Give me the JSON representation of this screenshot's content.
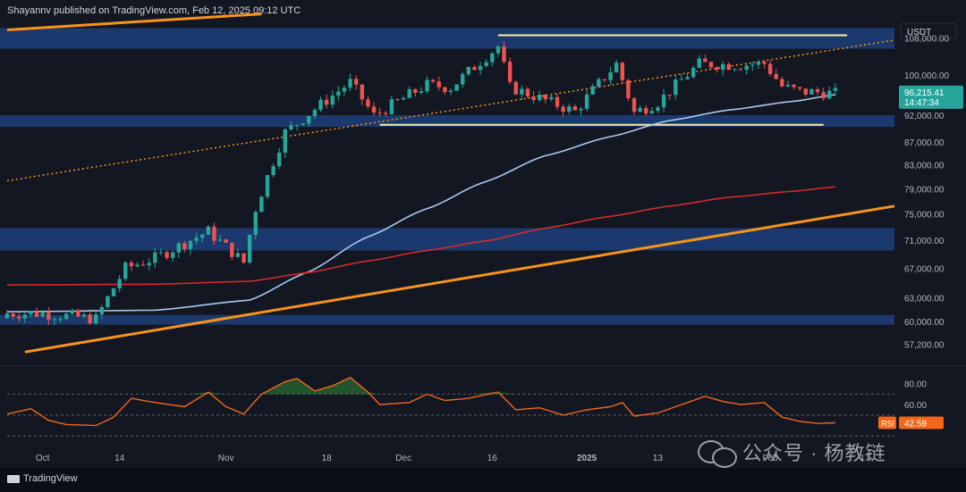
{
  "header": {
    "publisher_text": "Shayannv published on TradingView.com, Feb 12, 2025 09:12 UTC"
  },
  "footer": {
    "logo_text": "TradingView"
  },
  "watermark": {
    "text": "公众号 · 杨教链"
  },
  "colors": {
    "background": "#131722",
    "bull": "#26a69a",
    "bear": "#ef5350",
    "zone": "#1e3f7a",
    "channel": "#f7931a",
    "ma_fast": "#a9c8f0",
    "ma_slow": "#d12b2b",
    "range_box": "#f0f0a0",
    "rsi": "#f3661b"
  },
  "chart_data": [
    {
      "type": "candlestick",
      "title": "",
      "quote_currency": "USDT",
      "y_axis": {
        "scale": "log",
        "range": [
          55500,
          113000
        ],
        "ticks": [
          "108,000.00",
          "100,000.00",
          "92,000.00",
          "87,000.00",
          "83,000.00",
          "79,000.00",
          "75,000.00",
          "71,000.00",
          "67,000.00",
          "63,000.00",
          "60,000.00",
          "57,200.00"
        ]
      },
      "x_axis": {
        "range": [
          "2024-09-25",
          "2025-02-22"
        ],
        "ticks": [
          {
            "date": "2024-10-01",
            "label": "Oct",
            "bold": false
          },
          {
            "date": "2024-10-14",
            "label": "14",
            "bold": false
          },
          {
            "date": "2024-11-01",
            "label": "Nov",
            "bold": false
          },
          {
            "date": "2024-11-18",
            "label": "18",
            "bold": false
          },
          {
            "date": "2024-12-01",
            "label": "Dec",
            "bold": false
          },
          {
            "date": "2024-12-16",
            "label": "16",
            "bold": false
          },
          {
            "date": "2025-01-01",
            "label": "2025",
            "bold": true
          },
          {
            "date": "2025-01-13",
            "label": "13",
            "bold": false
          },
          {
            "date": "2025-02-01",
            "label": "Feb",
            "bold": false
          },
          {
            "date": "2025-02-17",
            "label": "17",
            "bold": false
          }
        ]
      },
      "last_price": {
        "value": 96215.41,
        "label": "96,215.41",
        "countdown": "14:47:34"
      },
      "candles_daily_close": [
        {
          "date": "2024-10-01",
          "close": 61000
        },
        {
          "date": "2024-10-10",
          "close": 60300
        },
        {
          "date": "2024-10-15",
          "close": 67000
        },
        {
          "date": "2024-10-20",
          "close": 68400
        },
        {
          "date": "2024-10-29",
          "close": 72300
        },
        {
          "date": "2024-11-04",
          "close": 67800
        },
        {
          "date": "2024-11-06",
          "close": 75800
        },
        {
          "date": "2024-11-11",
          "close": 88800
        },
        {
          "date": "2024-11-13",
          "close": 90500
        },
        {
          "date": "2024-11-22",
          "close": 98500
        },
        {
          "date": "2024-11-26",
          "close": 91900
        },
        {
          "date": "2024-12-05",
          "close": 98000
        },
        {
          "date": "2024-12-09",
          "close": 97400
        },
        {
          "date": "2024-12-17",
          "close": 106100
        },
        {
          "date": "2024-12-19",
          "close": 97500
        },
        {
          "date": "2024-12-30",
          "close": 92700
        },
        {
          "date": "2025-01-06",
          "close": 102300
        },
        {
          "date": "2025-01-09",
          "close": 92500
        },
        {
          "date": "2025-01-13",
          "close": 94500
        },
        {
          "date": "2025-01-20",
          "close": 102300
        },
        {
          "date": "2025-01-27",
          "close": 102100
        },
        {
          "date": "2025-01-31",
          "close": 102400
        },
        {
          "date": "2025-02-03",
          "close": 97700
        },
        {
          "date": "2025-02-06",
          "close": 96600
        },
        {
          "date": "2025-02-09",
          "close": 96500
        },
        {
          "date": "2025-02-12",
          "close": 96215
        }
      ],
      "zones": [
        {
          "from": 105600,
          "to": 110200
        },
        {
          "from": 89800,
          "to": 92000
        },
        {
          "from": 69500,
          "to": 72800
        },
        {
          "from": 59600,
          "to": 60800
        }
      ],
      "range_box": {
        "top": 108600,
        "bottom": 90200,
        "start": "2024-12-17",
        "end": "2025-02-14"
      },
      "channel_lines": [
        {
          "name": "",
          "points": [
            [
              "2024-09-25",
              109800
            ],
            [
              "2024-11-07",
              113500
            ]
          ],
          "style": "solid"
        },
        {
          "name": "",
          "points": [
            [
              "2024-09-28",
              56300
            ],
            [
              "2025-02-22",
              76200
            ]
          ],
          "style": "solid"
        },
        {
          "name": "",
          "points": [
            [
              "2024-09-25",
              80300
            ],
            [
              "2025-02-22",
              107500
            ]
          ],
          "style": "dotted"
        }
      ],
      "moving_averages": [
        {
          "name": "",
          "color": "#a9c8f0",
          "points": [
            [
              "2024-09-25",
              61200
            ],
            [
              "2024-10-20",
              61400
            ],
            [
              "2024-11-05",
              62700
            ],
            [
              "2024-11-15",
              66500
            ],
            [
              "2024-11-25",
              71500
            ],
            [
              "2024-12-05",
              75800
            ],
            [
              "2024-12-15",
              80200
            ],
            [
              "2024-12-25",
              84600
            ],
            [
              "2025-01-05",
              88000
            ],
            [
              "2025-01-15",
              91000
            ],
            [
              "2025-01-25",
              93000
            ],
            [
              "2025-02-05",
              94700
            ],
            [
              "2025-02-12",
              96000
            ]
          ]
        },
        {
          "name": "",
          "color": "#d12b2b",
          "points": [
            [
              "2024-09-25",
              64700
            ],
            [
              "2024-10-20",
              64800
            ],
            [
              "2024-11-05",
              65200
            ],
            [
              "2024-11-15",
              66400
            ],
            [
              "2024-11-25",
              68000
            ],
            [
              "2024-12-05",
              69500
            ],
            [
              "2024-12-15",
              70900
            ],
            [
              "2024-12-25",
              72800
            ],
            [
              "2025-01-05",
              74600
            ],
            [
              "2025-01-15",
              76200
            ],
            [
              "2025-01-25",
              77600
            ],
            [
              "2025-02-05",
              78600
            ],
            [
              "2025-02-12",
              79300
            ]
          ]
        }
      ]
    },
    {
      "type": "line",
      "title": "",
      "label": "RSI",
      "last_value": 42.59,
      "last_label": "42.59",
      "y_axis": {
        "range": [
          20,
          90
        ],
        "ticks": [
          "80.00",
          "60.00"
        ],
        "guides": [
          70,
          50,
          30
        ]
      },
      "values": [
        [
          "2024-09-25",
          51
        ],
        [
          "2024-09-29",
          56
        ],
        [
          "2024-10-02",
          45
        ],
        [
          "2024-10-05",
          41
        ],
        [
          "2024-10-10",
          40
        ],
        [
          "2024-10-13",
          48
        ],
        [
          "2024-10-16",
          66
        ],
        [
          "2024-10-20",
          62
        ],
        [
          "2024-10-25",
          58
        ],
        [
          "2024-10-29",
          72
        ],
        [
          "2024-11-01",
          58
        ],
        [
          "2024-11-04",
          51
        ],
        [
          "2024-11-07",
          70
        ],
        [
          "2024-11-11",
          82
        ],
        [
          "2024-11-13",
          85
        ],
        [
          "2024-11-16",
          73
        ],
        [
          "2024-11-19",
          78
        ],
        [
          "2024-11-22",
          86
        ],
        [
          "2024-11-25",
          72
        ],
        [
          "2024-11-27",
          60
        ],
        [
          "2024-12-02",
          62
        ],
        [
          "2024-12-05",
          70
        ],
        [
          "2024-12-08",
          64
        ],
        [
          "2024-12-12",
          66
        ],
        [
          "2024-12-17",
          72
        ],
        [
          "2024-12-20",
          55
        ],
        [
          "2024-12-24",
          57
        ],
        [
          "2024-12-28",
          50
        ],
        [
          "2025-01-01",
          55
        ],
        [
          "2025-01-05",
          58
        ],
        [
          "2025-01-07",
          62
        ],
        [
          "2025-01-09",
          49
        ],
        [
          "2025-01-13",
          52
        ],
        [
          "2025-01-16",
          58
        ],
        [
          "2025-01-21",
          68
        ],
        [
          "2025-01-24",
          63
        ],
        [
          "2025-01-27",
          60
        ],
        [
          "2025-01-31",
          62
        ],
        [
          "2025-02-03",
          48
        ],
        [
          "2025-02-06",
          44
        ],
        [
          "2025-02-09",
          42
        ],
        [
          "2025-02-12",
          42.6
        ]
      ]
    }
  ]
}
